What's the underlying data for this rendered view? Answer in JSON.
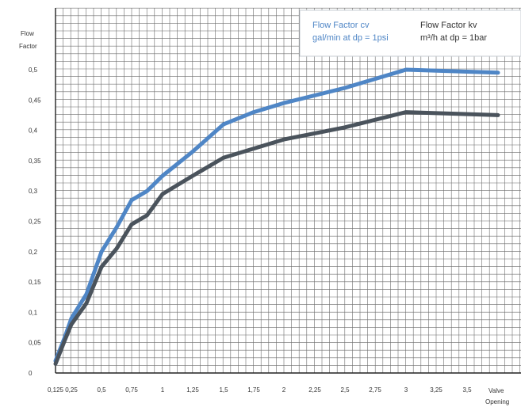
{
  "chart_data": {
    "type": "line",
    "ylabel": [
      "Flow",
      "Factor"
    ],
    "xlabel": [
      "Valve",
      "Opening"
    ],
    "x_ticks": [
      "0,125",
      "0,25",
      "0,5",
      "0,75",
      "1",
      "1,25",
      "1,5",
      "1,75",
      "2",
      "2,25",
      "2,5",
      "2,75",
      "3",
      "3,25",
      "3,5"
    ],
    "y_ticks": [
      "0",
      "0,05",
      "0,1",
      "0,15",
      "0,2",
      "0,25",
      "0,3",
      "0,35",
      "0,4",
      "0,45",
      "0,5"
    ],
    "ylim": [
      0,
      0.5
    ],
    "grid": true,
    "legend_position": "top-right",
    "series": [
      {
        "name": "Flow Factor cv",
        "name_line2": "gal/min at dp = 1psi",
        "color": "#4f86c6",
        "points": [
          [
            0.125,
            0.02
          ],
          [
            0.2,
            0.06
          ],
          [
            0.25,
            0.09
          ],
          [
            0.375,
            0.13
          ],
          [
            0.5,
            0.2
          ],
          [
            0.625,
            0.24
          ],
          [
            0.75,
            0.285
          ],
          [
            0.875,
            0.3
          ],
          [
            1.0,
            0.325
          ],
          [
            1.25,
            0.365
          ],
          [
            1.5,
            0.41
          ],
          [
            1.75,
            0.43
          ],
          [
            2.0,
            0.445
          ],
          [
            2.5,
            0.47
          ],
          [
            3.0,
            0.5
          ],
          [
            3.75,
            0.495
          ]
        ]
      },
      {
        "name": "Flow Factor kv",
        "name_line2": "m³/h at dp = 1bar",
        "color": "#4a535c",
        "points": [
          [
            0.125,
            0.015
          ],
          [
            0.2,
            0.055
          ],
          [
            0.25,
            0.08
          ],
          [
            0.375,
            0.115
          ],
          [
            0.5,
            0.175
          ],
          [
            0.625,
            0.205
          ],
          [
            0.75,
            0.245
          ],
          [
            0.875,
            0.26
          ],
          [
            1.0,
            0.295
          ],
          [
            1.25,
            0.325
          ],
          [
            1.5,
            0.355
          ],
          [
            1.75,
            0.37
          ],
          [
            2.0,
            0.385
          ],
          [
            2.5,
            0.405
          ],
          [
            3.0,
            0.43
          ],
          [
            3.75,
            0.425
          ]
        ]
      }
    ]
  }
}
